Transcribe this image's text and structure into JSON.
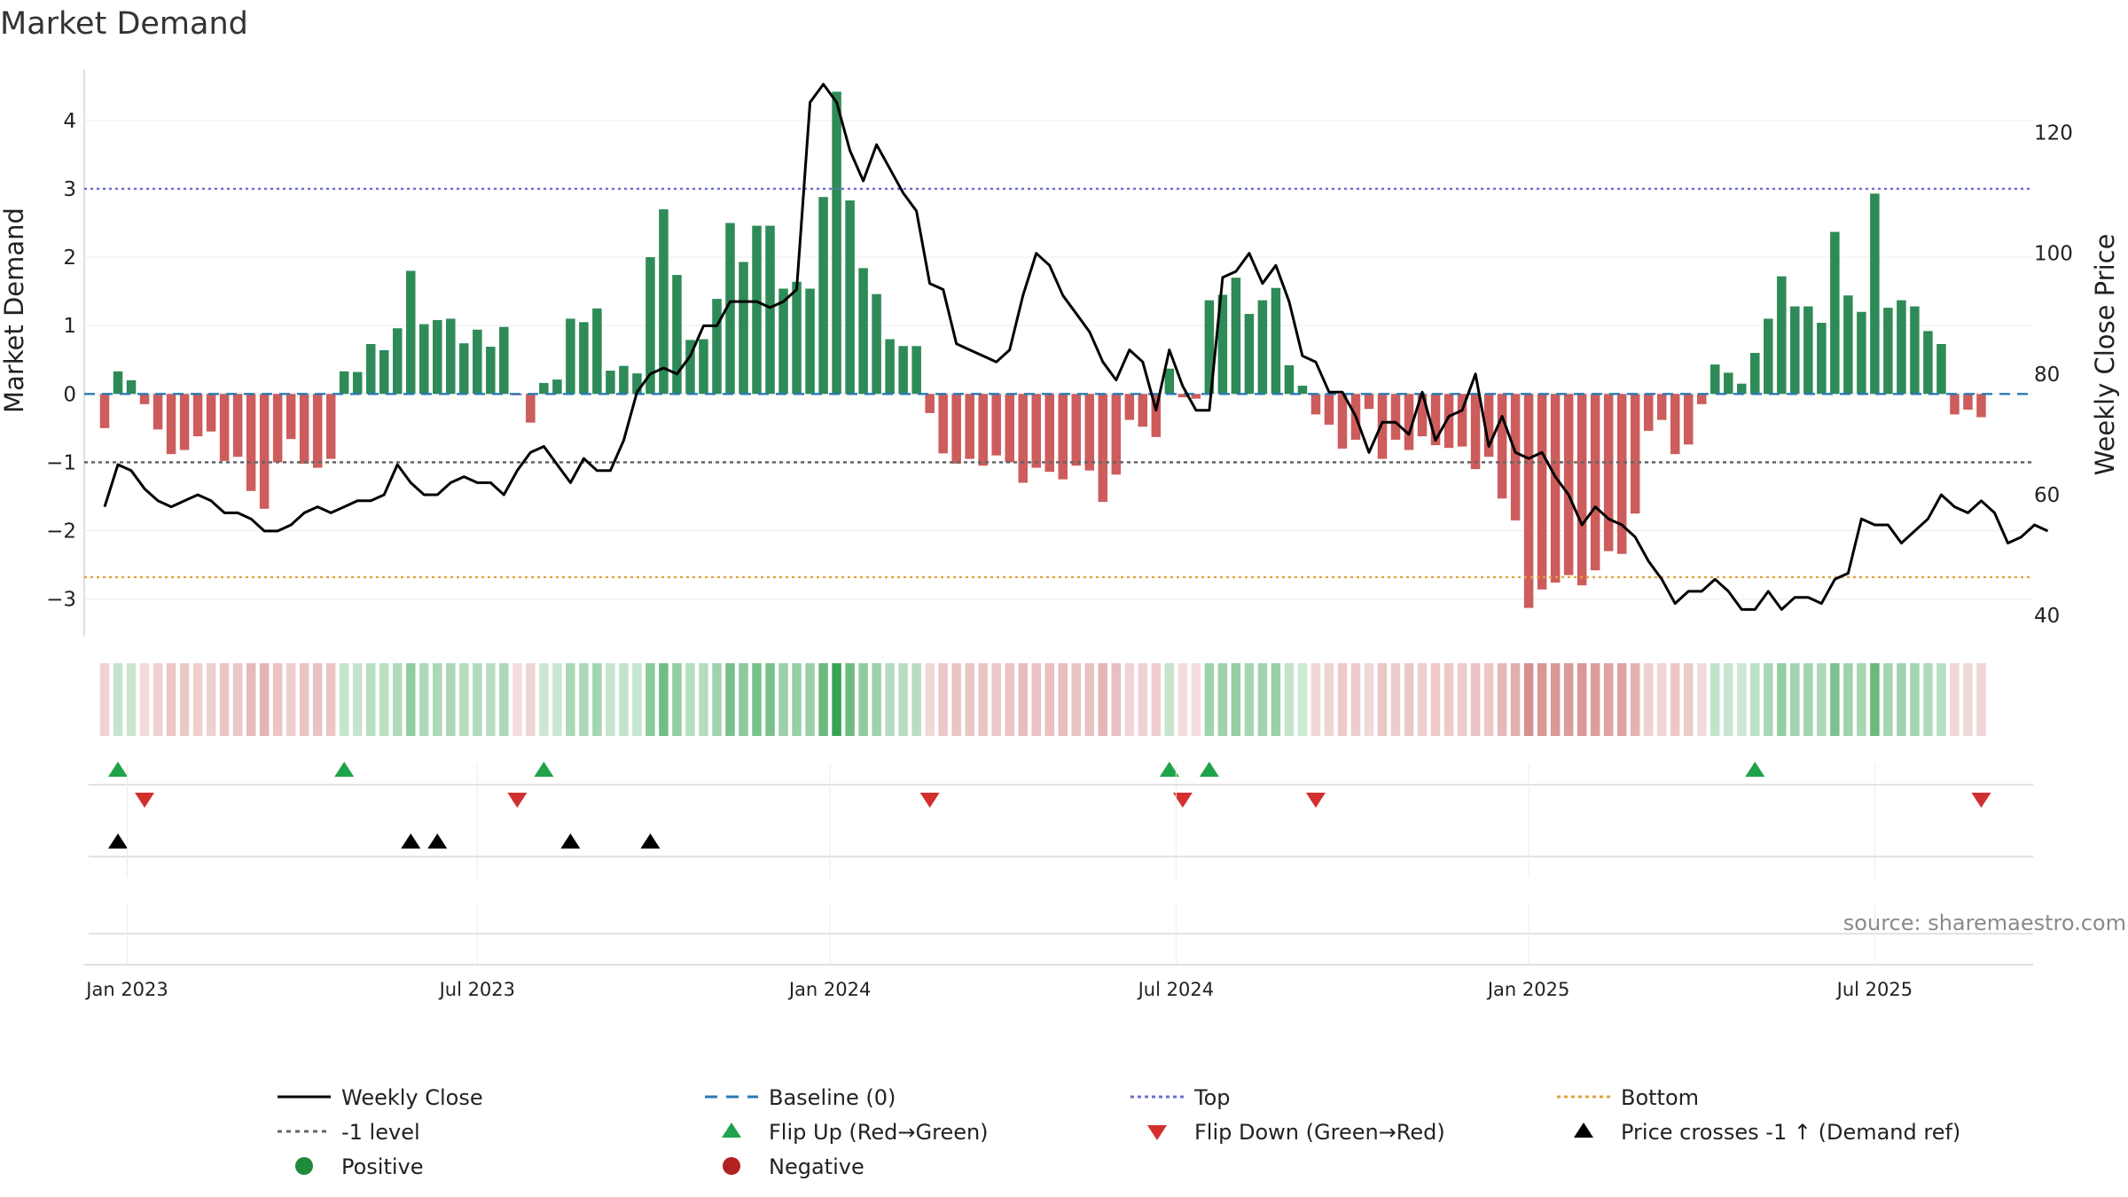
{
  "chart_data": {
    "type": "bar",
    "title": "Market Demand",
    "ylabel_left": "Market Demand",
    "ylabel_right": "Weekly Close Price",
    "ylim_left": [
      -3.55,
      4.75
    ],
    "ylim_right": [
      36.5,
      130.5
    ],
    "yticks_left": [
      4,
      3,
      2,
      1,
      0,
      -1,
      -2,
      -3
    ],
    "yticks_right": [
      120,
      100,
      80,
      60,
      40
    ],
    "ytick_labels_left": [
      "4",
      "3",
      "2",
      "1",
      "0",
      "−1",
      "−2",
      "−3"
    ],
    "ytick_labels_right": [
      "120",
      "100",
      "80",
      "60",
      "40"
    ],
    "x_range_weeks": [
      -1,
      144.5
    ],
    "x_ticks": [
      {
        "label": "Jan 2023",
        "week": 1.7
      },
      {
        "label": "Jul 2023",
        "week": 28
      },
      {
        "label": "Jan 2024",
        "week": 54.5
      },
      {
        "label": "Jul 2024",
        "week": 80.5
      },
      {
        "label": "Jan 2025",
        "week": 107
      },
      {
        "label": "Jul 2025",
        "week": 133
      }
    ],
    "reference_lines": {
      "top": 3,
      "bottom": -2.68,
      "minus_one": -1,
      "baseline": 0
    },
    "demand": [
      -0.5,
      0.33,
      0.2,
      -0.15,
      -0.52,
      -0.88,
      -0.82,
      -0.62,
      -0.55,
      -0.98,
      -0.92,
      -1.42,
      -1.68,
      -1.0,
      -0.66,
      -1.02,
      -1.08,
      -0.95,
      0.33,
      0.32,
      0.73,
      0.64,
      0.96,
      1.8,
      1.02,
      1.08,
      1.1,
      0.74,
      0.94,
      0.69,
      0.98,
      -0.02,
      -0.42,
      0.16,
      0.21,
      1.1,
      1.05,
      1.25,
      0.34,
      0.41,
      0.3,
      2.0,
      2.7,
      1.74,
      0.79,
      0.8,
      1.39,
      2.5,
      1.93,
      2.46,
      2.46,
      1.54,
      1.64,
      1.54,
      2.88,
      4.42,
      2.83,
      1.84,
      1.46,
      0.8,
      0.7,
      0.7,
      -0.28,
      -0.87,
      -1.02,
      -0.95,
      -1.05,
      -0.9,
      -1.0,
      -1.3,
      -1.08,
      -1.14,
      -1.25,
      -1.05,
      -1.12,
      -1.58,
      -1.18,
      -0.38,
      -0.48,
      -0.63,
      0.37,
      -0.05,
      -0.07,
      1.37,
      1.45,
      1.7,
      1.17,
      1.37,
      1.55,
      0.42,
      0.12,
      -0.3,
      -0.45,
      -0.8,
      -0.67,
      -0.22,
      -0.95,
      -0.67,
      -0.82,
      -0.62,
      -0.75,
      -0.79,
      -0.77,
      -1.1,
      -0.92,
      -1.53,
      -1.85,
      -3.13,
      -2.86,
      -2.76,
      -2.65,
      -2.8,
      -2.58,
      -2.3,
      -2.34,
      -1.75,
      -0.54,
      -0.38,
      -0.88,
      -0.74,
      -0.15,
      0.43,
      0.31,
      0.15,
      0.6,
      1.1,
      1.72,
      1.28,
      1.28,
      1.04,
      2.37,
      1.44,
      1.2,
      2.93,
      1.26,
      1.37,
      1.28,
      0.92,
      0.73,
      -0.3,
      -0.23,
      -0.34
    ],
    "weekly_close": [
      58,
      65,
      64,
      61,
      59,
      58,
      59,
      60,
      59,
      57,
      57,
      56,
      54,
      54,
      55,
      57,
      58,
      57,
      58,
      59,
      59,
      60,
      65,
      62,
      60,
      60,
      62,
      63,
      62,
      62,
      60,
      64,
      67,
      68,
      65,
      62,
      66,
      64,
      64,
      69,
      77,
      80,
      81,
      80,
      83,
      88,
      88,
      92,
      92,
      92,
      91,
      92,
      94,
      125,
      128,
      125,
      117,
      112,
      118,
      114,
      110,
      107,
      95,
      94,
      85,
      84,
      83,
      82,
      84,
      93,
      100,
      98,
      93,
      90,
      87,
      82,
      79,
      84,
      82,
      74,
      84,
      78,
      74,
      74,
      96,
      97,
      100,
      95,
      98,
      92,
      83,
      82,
      77,
      77,
      73,
      67,
      72,
      72,
      70,
      77,
      69,
      73,
      74,
      80,
      68,
      73,
      67,
      66,
      67,
      63,
      60,
      55,
      58,
      56,
      55,
      53,
      49,
      46,
      42,
      44,
      44,
      46,
      44,
      41,
      41,
      44,
      41,
      43,
      43,
      42,
      46,
      47,
      56,
      55,
      55,
      52,
      54,
      56,
      60,
      58,
      57,
      59,
      57,
      52,
      53,
      55,
      54
    ],
    "flip_up_weeks": [
      1,
      18,
      33,
      80,
      83,
      124
    ],
    "flip_down_weeks": [
      3,
      31,
      62,
      81,
      91,
      141
    ],
    "price_cross_weeks": [
      1,
      23,
      25,
      35,
      41
    ],
    "colors": {
      "positive_bar": "#2e8b57",
      "negative_bar": "#cd5c5c",
      "weekly_close": "#000000",
      "baseline": "#2a7ab5",
      "top": "#6b6bd6",
      "bottom": "#e1a23a",
      "minus_one": "#666666",
      "flip_up": "#1fa34a",
      "flip_down": "#d32f2f",
      "price_cross": "#000000",
      "positive_dot": "#1e8b38",
      "negative_dot": "#b22222"
    },
    "legend": [
      {
        "label": "Weekly Close",
        "marker": "line-solid"
      },
      {
        "label": "Baseline (0)",
        "marker": "line-dash"
      },
      {
        "label": "Top",
        "marker": "line-dot-blue"
      },
      {
        "label": "Bottom",
        "marker": "line-dot-orange"
      },
      {
        "label": "-1 level",
        "marker": "line-dot-gray"
      },
      {
        "label": "Flip Up (Red→Green)",
        "marker": "tri-up-green"
      },
      {
        "label": "Flip Down (Green→Red)",
        "marker": "tri-down-red"
      },
      {
        "label": "Price crosses -1 ↑ (Demand ref)",
        "marker": "tri-up-black"
      },
      {
        "label": "Positive",
        "marker": "dot-green"
      },
      {
        "label": "Negative",
        "marker": "dot-red"
      }
    ],
    "legend_position": "bottom",
    "source": "source: sharemaestro.com"
  }
}
